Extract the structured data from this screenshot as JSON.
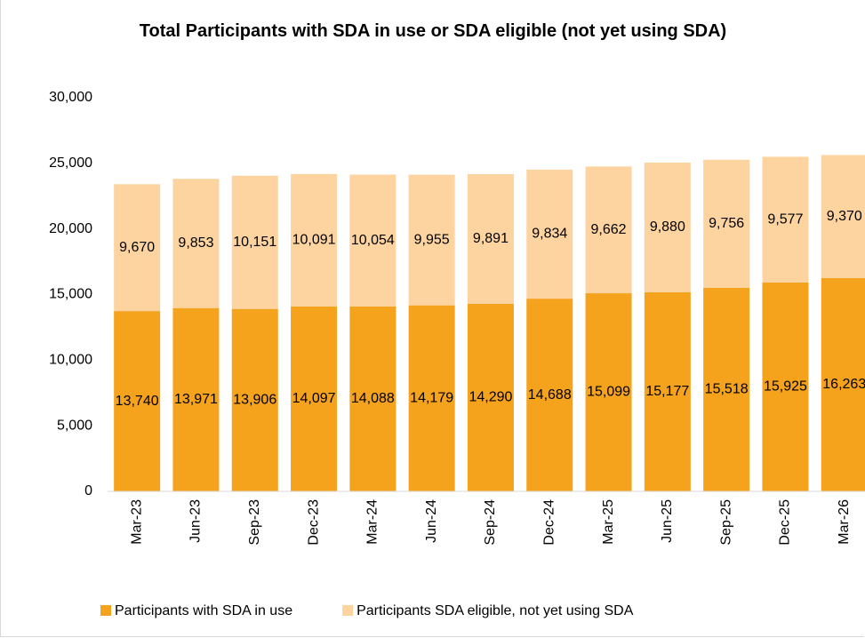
{
  "chart_data": {
    "type": "stacked_bar",
    "title": "Total Participants with SDA in use or SDA eligible (not yet using SDA)",
    "categories": [
      "Mar-23",
      "Jun-23",
      "Sep-23",
      "Dec-23",
      "Mar-24",
      "Jun-24",
      "Sep-24",
      "Dec-24",
      "Mar-25",
      "Jun-25",
      "Sep-25",
      "Dec-25",
      "Mar-26"
    ],
    "series": [
      {
        "name": "Participants with SDA in use",
        "color": "#f5a21d",
        "values": [
          13740,
          13971,
          13906,
          14097,
          14088,
          14179,
          14290,
          14688,
          15099,
          15177,
          15518,
          15925,
          16263
        ],
        "value_labels": [
          "13,740",
          "13,971",
          "13,906",
          "14,097",
          "14,088",
          "14,179",
          "14,290",
          "14,688",
          "15,099",
          "15,177",
          "15,518",
          "15,925",
          "16,263"
        ]
      },
      {
        "name": "Participants SDA eligible, not yet using SDA",
        "color": "#fdd4a0",
        "values": [
          9670,
          9853,
          10151,
          10091,
          10054,
          9955,
          9891,
          9834,
          9662,
          9880,
          9756,
          9577,
          9370
        ],
        "value_labels": [
          "9,670",
          "9,853",
          "10,151",
          "10,091",
          "10,054",
          "9,955",
          "9,891",
          "9,834",
          "9,662",
          "9,880",
          "9,756",
          "9,577",
          "9,370"
        ]
      }
    ],
    "ylim": [
      0,
      30000
    ],
    "yticks": [
      0,
      {
        "value": 5000,
        "label": "5,000"
      },
      {
        "value": 10000,
        "label": "10,000"
      },
      {
        "value": 15000,
        "label": "15,000"
      },
      {
        "value": 20000,
        "label": "20,000"
      },
      {
        "value": 25000,
        "label": "25,000"
      },
      {
        "value": 30000,
        "label": "30,000"
      }
    ],
    "grid": false,
    "legend": "bottom"
  }
}
